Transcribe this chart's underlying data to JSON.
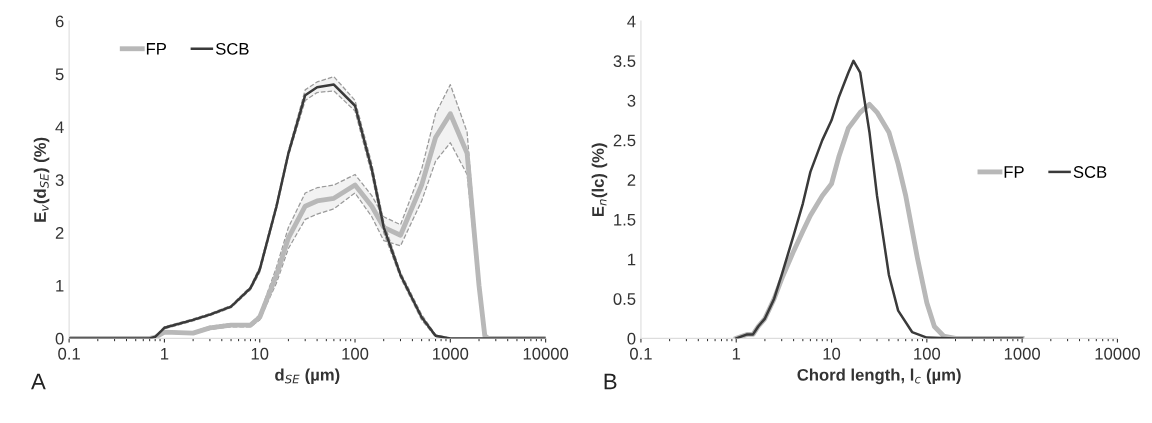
{
  "chart_data": [
    {
      "type": "line",
      "log": "x",
      "xlabel": "d$_{SE}$ (µm)",
      "ylabel": "E$_{v}$(d$_{SE}$) (%)",
      "annotations": [
        "A"
      ],
      "legend": "top left",
      "grid": false,
      "xlim": [
        0.1,
        10000
      ],
      "xticks": [
        0.1,
        1,
        10,
        100,
        1000,
        10000
      ],
      "ylim": [
        0,
        6
      ],
      "yticks": [
        0,
        1,
        2,
        3,
        4,
        5,
        6
      ],
      "series": [
        {
          "name": "FP",
          "color": "#b8b8b8",
          "x": [
            0.1,
            0.5,
            0.7,
            0.8,
            1,
            2,
            3,
            5,
            8,
            10,
            15,
            20,
            30,
            40,
            60,
            100,
            150,
            200,
            300,
            500,
            700,
            1000,
            1500,
            2000,
            2300,
            2500,
            5000,
            10000
          ],
          "values": [
            0,
            0,
            0,
            0.02,
            0.12,
            0.1,
            0.2,
            0.25,
            0.25,
            0.4,
            1.2,
            1.9,
            2.5,
            2.6,
            2.65,
            2.9,
            2.5,
            2.1,
            1.95,
            2.9,
            3.8,
            4.25,
            3.5,
            1.0,
            0.05,
            0,
            0,
            0
          ],
          "lower": [
            0,
            0,
            0,
            0.01,
            0.1,
            0.08,
            0.17,
            0.22,
            0.22,
            0.35,
            1.05,
            1.7,
            2.25,
            2.35,
            2.45,
            2.75,
            2.3,
            1.85,
            1.75,
            2.6,
            3.35,
            3.7,
            3.1,
            0.9,
            0.04,
            0,
            0,
            0
          ],
          "upper": [
            0,
            0,
            0,
            0.03,
            0.14,
            0.12,
            0.23,
            0.28,
            0.28,
            0.45,
            1.35,
            2.1,
            2.75,
            2.85,
            2.9,
            3.1,
            2.7,
            2.3,
            2.15,
            3.2,
            4.25,
            4.8,
            3.9,
            1.1,
            0.06,
            0,
            0,
            0
          ]
        },
        {
          "name": "SCB",
          "color": "#3a3a3a",
          "x": [
            0.1,
            0.5,
            0.7,
            0.8,
            1,
            2,
            3,
            5,
            8,
            10,
            15,
            20,
            30,
            40,
            60,
            100,
            150,
            200,
            300,
            500,
            700,
            1000,
            1500,
            2000,
            2300,
            2500,
            5000,
            10000
          ],
          "values": [
            0,
            0,
            0,
            0.03,
            0.2,
            0.35,
            0.45,
            0.6,
            0.95,
            1.3,
            2.5,
            3.5,
            4.6,
            4.75,
            4.8,
            4.4,
            3.2,
            2.1,
            1.2,
            0.4,
            0.05,
            0,
            0,
            0,
            0,
            0,
            0,
            0
          ],
          "lower": [
            0,
            0,
            0,
            0.02,
            0.18,
            0.33,
            0.43,
            0.58,
            0.92,
            1.25,
            2.45,
            3.45,
            4.5,
            4.65,
            4.68,
            4.3,
            3.1,
            2.0,
            1.15,
            0.35,
            0.03,
            0,
            0,
            0,
            0,
            0,
            0,
            0
          ],
          "upper": [
            0,
            0,
            0,
            0.04,
            0.22,
            0.37,
            0.47,
            0.62,
            0.98,
            1.35,
            2.55,
            3.55,
            4.7,
            4.85,
            4.95,
            4.5,
            3.3,
            2.2,
            1.25,
            0.45,
            0.07,
            0,
            0,
            0,
            0,
            0,
            0,
            0
          ]
        }
      ]
    },
    {
      "type": "line",
      "log": "x",
      "xlabel": "Chord length, l$_{c}$ (µm)",
      "ylabel": "E$_{n}$(lc) (%)",
      "annotations": [
        "B"
      ],
      "legend": "right",
      "grid": false,
      "xlim": [
        0.1,
        10000
      ],
      "xticks": [
        0.1,
        1,
        10,
        100,
        1000,
        10000
      ],
      "ylim": [
        0,
        4
      ],
      "yticks": [
        0,
        0.5,
        1,
        1.5,
        2,
        2.5,
        3,
        3.5,
        4
      ],
      "series": [
        {
          "name": "FP",
          "color": "#b8b8b8",
          "x": [
            1,
            1.3,
            1.5,
            1.7,
            2,
            2.5,
            3,
            4,
            5,
            6,
            8,
            10,
            12,
            15,
            20,
            25,
            30,
            40,
            50,
            60,
            80,
            100,
            120,
            150,
            200,
            1000
          ],
          "values": [
            0,
            0.05,
            0.05,
            0.15,
            0.25,
            0.5,
            0.75,
            1.1,
            1.35,
            1.55,
            1.8,
            1.95,
            2.3,
            2.65,
            2.85,
            2.95,
            2.85,
            2.6,
            2.2,
            1.8,
            1.0,
            0.45,
            0.15,
            0.03,
            0,
            0
          ]
        },
        {
          "name": "SCB",
          "color": "#3a3a3a",
          "x": [
            1,
            1.3,
            1.5,
            1.7,
            2,
            2.5,
            3,
            4,
            5,
            6,
            8,
            10,
            12,
            15,
            17,
            20,
            25,
            30,
            40,
            50,
            70,
            100,
            200,
            1000
          ],
          "values": [
            0,
            0.05,
            0.05,
            0.15,
            0.25,
            0.5,
            0.8,
            1.3,
            1.7,
            2.1,
            2.5,
            2.75,
            3.05,
            3.35,
            3.5,
            3.35,
            2.6,
            1.8,
            0.8,
            0.35,
            0.08,
            0.01,
            0,
            0
          ]
        }
      ]
    }
  ]
}
